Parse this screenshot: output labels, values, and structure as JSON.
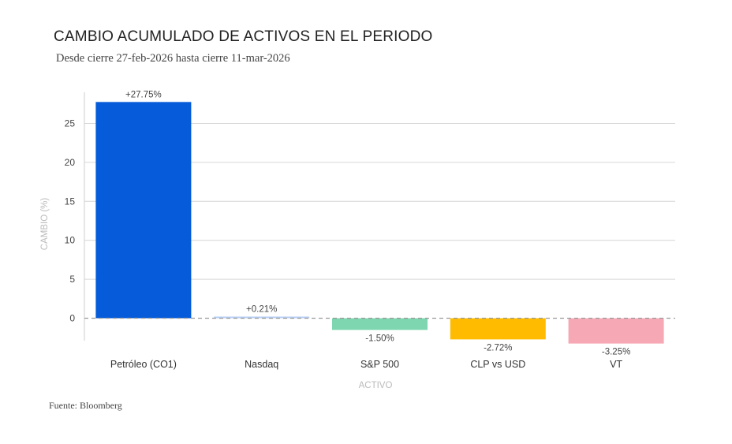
{
  "chart_data": {
    "type": "bar",
    "title": "CAMBIO ACUMULADO DE ACTIVOS EN EL PERIODO",
    "subtitle": "Desde cierre 27-feb-2026 hasta cierre 11-mar-2026",
    "xlabel": "ACTIVO",
    "ylabel": "CAMBIO (%)",
    "categories": [
      "Petróleo (CO1)",
      "Nasdaq",
      "S&P 500",
      "CLP vs USD",
      "VT"
    ],
    "values": [
      27.75,
      0.21,
      -1.5,
      -2.72,
      -3.25
    ],
    "data_labels": [
      "+27.75%",
      "+0.21%",
      "-1.50%",
      "-2.72%",
      "-3.25%"
    ],
    "colors": [
      "#055BD9",
      "#B8CFF5",
      "#7DD6B0",
      "#FFBB00",
      "#F6A9B5"
    ],
    "ylim": [
      -4.5,
      30
    ],
    "yticks": [
      0,
      5,
      10,
      15,
      20,
      25
    ],
    "grid": true,
    "zero_line": "dashed"
  },
  "source": "Fuente: Bloomberg"
}
